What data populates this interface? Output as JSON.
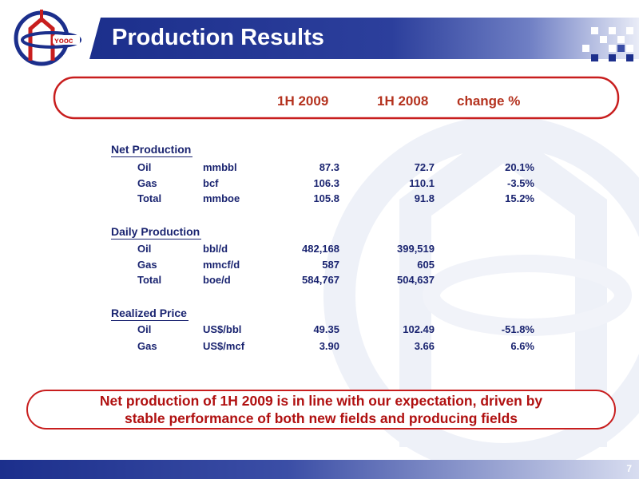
{
  "slide": {
    "title": "Production Results",
    "page_number": "7",
    "colors": {
      "title_band": "#1c2f8c",
      "accent_red": "#b01010",
      "column_header": "#b4321e",
      "table_text": "#1a2470"
    },
    "logo": {
      "icon": "cnooc-logo-icon"
    }
  },
  "table": {
    "columns": [
      "1H 2009",
      "1H 2008",
      "change %"
    ],
    "sections": [
      {
        "title": "Net Production",
        "rows": [
          {
            "name": "Oil",
            "unit": "mmbbl",
            "values": [
              "87.3",
              "72.7",
              "20.1%"
            ]
          },
          {
            "name": "Gas",
            "unit": "bcf",
            "values": [
              "106.3",
              "110.1",
              "-3.5%"
            ]
          },
          {
            "name": "Total",
            "unit": "mmboe",
            "values": [
              "105.8",
              "91.8",
              "15.2%"
            ]
          }
        ]
      },
      {
        "title": "Daily Production",
        "rows": [
          {
            "name": "Oil",
            "unit": "bbl/d",
            "values": [
              "482,168",
              "399,519",
              ""
            ]
          },
          {
            "name": "Gas",
            "unit": "mmcf/d",
            "values": [
              "587",
              "605",
              ""
            ]
          },
          {
            "name": "Total",
            "unit": "boe/d",
            "values": [
              "584,767",
              "504,637",
              ""
            ]
          }
        ]
      },
      {
        "title": "Realized Price",
        "rows": [
          {
            "name": "Oil",
            "unit": "US$/bbl",
            "values": [
              "49.35",
              "102.49",
              "-51.8%"
            ]
          },
          {
            "name": "Gas",
            "unit": "US$/mcf",
            "values": [
              "3.90",
              "3.66",
              "6.6%"
            ]
          }
        ]
      }
    ]
  },
  "note": {
    "line1": "Net production of 1H 2009 is in line with our expectation, driven by",
    "line2": "stable performance of both new fields and producing fields"
  }
}
